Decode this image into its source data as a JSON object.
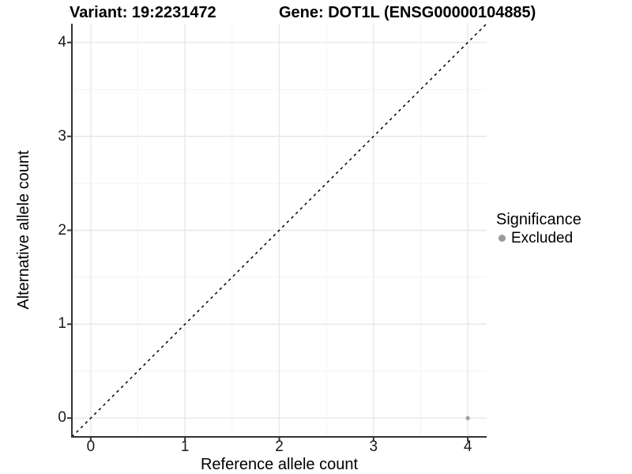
{
  "chart_data": {
    "type": "scatter",
    "titles": {
      "left": "Variant: 19:2231472",
      "right": "Gene: DOT1L (ENSG00000104885)"
    },
    "xlabel": "Reference allele count",
    "ylabel": "Alternative allele count",
    "xlim": [
      -0.2,
      4.2
    ],
    "ylim": [
      -0.2,
      4.2
    ],
    "xticks": [
      0,
      1,
      2,
      3,
      4
    ],
    "yticks": [
      0,
      1,
      2,
      3,
      4
    ],
    "minor_xticks": [
      0.5,
      1.5,
      2.5,
      3.5
    ],
    "minor_yticks": [
      0.5,
      1.5,
      2.5,
      3.5
    ],
    "grid": "major+minor",
    "series": [
      {
        "name": "Excluded",
        "marker": "circle",
        "color": "#a0a0a0",
        "points": [
          {
            "x": 4,
            "y": 0
          }
        ]
      }
    ],
    "reference_line": {
      "type": "identity",
      "slope": 1,
      "intercept": 0,
      "style": "dashed",
      "color": "#000000"
    },
    "legend": {
      "title": "Significance",
      "position": "right",
      "entries": [
        {
          "label": "Excluded",
          "color": "#999999"
        }
      ]
    },
    "colors": {
      "background": "#ffffff",
      "grid_major": "#e8e8e8",
      "grid_minor": "#f3f3f3",
      "axis_line": "#333333",
      "tick_text": "#1a1a1a",
      "point": "#a0a0a0"
    }
  }
}
